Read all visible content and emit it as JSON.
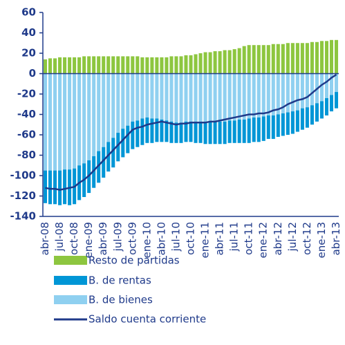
{
  "chart_data": {
    "type": "bar",
    "categories": [
      "abr-08",
      null,
      null,
      "jul-08",
      null,
      null,
      "oct-08",
      null,
      null,
      "ene-09",
      null,
      null,
      "abr-09",
      null,
      null,
      "jul-09",
      null,
      null,
      "oct-09",
      null,
      null,
      "ene-10",
      null,
      null,
      "abr-10",
      null,
      null,
      "jul-10",
      null,
      null,
      "oct-10",
      null,
      null,
      "ene-11",
      null,
      null,
      "abr-11",
      null,
      null,
      "jul-11",
      null,
      null,
      "oct-11",
      null,
      null,
      "ene-12",
      null,
      null,
      "abr-12",
      null,
      null,
      "jul-12",
      null,
      null,
      "oct-12",
      null,
      null,
      "ene-13",
      null,
      null,
      "abr-13"
    ],
    "series": [
      {
        "name": "Resto de partidas",
        "color": "#8dc63f",
        "values": [
          14,
          15,
          15,
          16,
          16,
          16,
          16,
          16,
          17,
          17,
          17,
          17,
          17,
          17,
          17,
          17,
          17,
          17,
          17,
          17,
          16,
          16,
          16,
          16,
          16,
          16,
          17,
          17,
          17,
          18,
          18,
          19,
          20,
          21,
          21,
          22,
          22,
          23,
          23,
          24,
          25,
          27,
          28,
          28,
          28,
          28,
          28,
          29,
          29,
          29,
          30,
          30,
          30,
          30,
          30,
          31,
          31,
          32,
          32,
          33,
          33
        ]
      },
      {
        "name": "B. de rentas",
        "color": "#0096d6",
        "values": [
          -32,
          -33,
          -33,
          -34,
          -34,
          -35,
          -35,
          -34,
          -33,
          -32,
          -31,
          -31,
          -30,
          -29,
          -29,
          -28,
          -28,
          -27,
          -27,
          -26,
          -26,
          -25,
          -24,
          -23,
          -22,
          -21,
          -21,
          -20,
          -20,
          -20,
          -20,
          -21,
          -21,
          -22,
          -22,
          -22,
          -22,
          -22,
          -22,
          -22,
          -23,
          -23,
          -24,
          -24,
          -24,
          -24,
          -23,
          -23,
          -22,
          -22,
          -22,
          -22,
          -21,
          -21,
          -20,
          -19,
          -18,
          -17,
          -17,
          -16,
          -16
        ]
      },
      {
        "name": "B. de bienes",
        "color": "#8fd0f0",
        "values": [
          -95,
          -95,
          -95,
          -95,
          -94,
          -94,
          -93,
          -90,
          -88,
          -85,
          -81,
          -76,
          -72,
          -67,
          -63,
          -58,
          -54,
          -51,
          -47,
          -46,
          -44,
          -43,
          -44,
          -44,
          -45,
          -46,
          -47,
          -48,
          -48,
          -47,
          -47,
          -47,
          -47,
          -47,
          -47,
          -47,
          -47,
          -47,
          -46,
          -46,
          -45,
          -45,
          -44,
          -43,
          -43,
          -42,
          -41,
          -41,
          -40,
          -39,
          -38,
          -37,
          -36,
          -34,
          -33,
          -31,
          -29,
          -27,
          -24,
          -21,
          -18
        ]
      },
      {
        "name": "Saldo cuenta corriente",
        "color": "#1f3a8a",
        "type": "line",
        "values": [
          -112,
          -113,
          -113,
          -114,
          -113,
          -112,
          -111,
          -107,
          -104,
          -100,
          -95,
          -90,
          -85,
          -80,
          -75,
          -70,
          -65,
          -60,
          -55,
          -53,
          -52,
          -50,
          -49,
          -48,
          -47,
          -48,
          -49,
          -50,
          -49,
          -49,
          -48,
          -48,
          -48,
          -48,
          -47,
          -47,
          -46,
          -45,
          -44,
          -43,
          -42,
          -41,
          -40,
          -40,
          -39,
          -39,
          -38,
          -36,
          -35,
          -33,
          -30,
          -28,
          -26,
          -25,
          -23,
          -19,
          -15,
          -11,
          -8,
          -4,
          -1
        ]
      }
    ],
    "ylim": [
      -140,
      60
    ],
    "yticks": [
      -140,
      -120,
      -100,
      -80,
      -60,
      -40,
      -20,
      0,
      20,
      40,
      60
    ]
  }
}
